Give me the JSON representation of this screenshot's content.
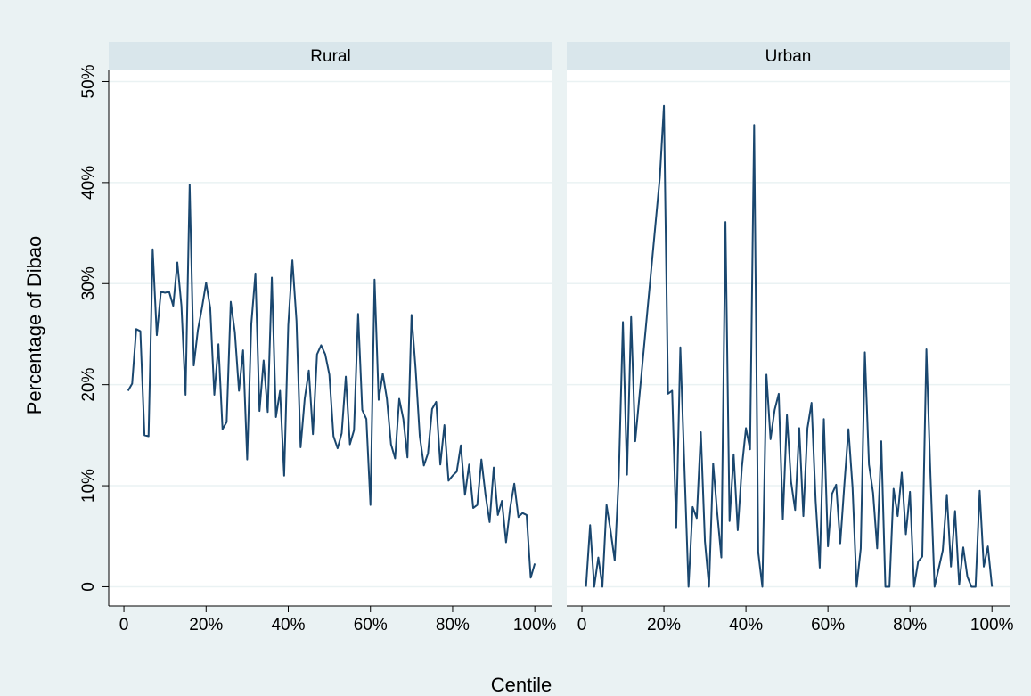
{
  "chart_data": {
    "type": "line",
    "ylabel": "Percentage of Dibao",
    "xlabel": "Centile",
    "ylim": [
      -1.9,
      51.1
    ],
    "yticks": [
      0,
      {
        "value": 10,
        "label": "10%"
      },
      {
        "value": 20,
        "label": "20%"
      },
      {
        "value": 30,
        "label": "30%"
      },
      {
        "value": 40,
        "label": "40%"
      },
      {
        "value": 50,
        "label": "50%"
      }
    ],
    "xlim": [
      -3.7,
      104.3
    ],
    "xticks": [
      0,
      {
        "value": 20,
        "label": "20%"
      },
      {
        "value": 40,
        "label": "40%"
      },
      {
        "value": 60,
        "label": "60%"
      },
      {
        "value": 80,
        "label": "80%"
      },
      {
        "value": 100,
        "label": "100%"
      }
    ],
    "grid": true,
    "color": "#1a476f",
    "panels": [
      {
        "title": "Rural",
        "x": [
          1,
          2,
          3,
          4,
          5,
          6,
          7,
          8,
          9,
          10,
          11,
          12,
          13,
          14,
          15,
          16,
          17,
          18,
          19,
          20,
          21,
          22,
          23,
          24,
          25,
          26,
          27,
          28,
          29,
          30,
          31,
          32,
          33,
          34,
          35,
          36,
          37,
          38,
          39,
          40,
          41,
          42,
          43,
          44,
          45,
          46,
          47,
          48,
          49,
          50,
          51,
          52,
          53,
          54,
          55,
          56,
          57,
          58,
          59,
          60,
          61,
          62,
          63,
          64,
          65,
          66,
          67,
          68,
          69,
          70,
          71,
          72,
          73,
          74,
          75,
          76,
          77,
          78,
          79,
          80,
          81,
          82,
          83,
          84,
          85,
          86,
          87,
          88,
          89,
          90,
          91,
          92,
          93,
          94,
          95,
          96,
          97,
          98,
          99,
          100
        ],
        "values": [
          19.4,
          20.1,
          25.5,
          25.3,
          15.0,
          14.9,
          33.4,
          24.9,
          29.2,
          29.1,
          29.2,
          27.8,
          32.1,
          27.8,
          19.0,
          39.8,
          21.9,
          25.4,
          27.6,
          30.1,
          27.6,
          19.0,
          24.0,
          15.6,
          16.3,
          28.2,
          25.2,
          19.4,
          23.4,
          12.6,
          26.0,
          31.0,
          17.4,
          22.4,
          17.3,
          30.6,
          16.8,
          19.4,
          11.0,
          25.9,
          32.3,
          26.3,
          13.8,
          18.6,
          21.4,
          15.1,
          23.0,
          23.9,
          23.0,
          21.0,
          14.9,
          13.7,
          15.2,
          20.8,
          14.1,
          15.5,
          27.0,
          17.5,
          16.6,
          8.1,
          30.4,
          18.5,
          21.1,
          18.6,
          14.1,
          12.7,
          18.6,
          16.6,
          12.8,
          26.9,
          21.5,
          14.9,
          12.0,
          13.2,
          17.6,
          18.3,
          12.1,
          16.0,
          10.5,
          11.0,
          11.4,
          14.0,
          9.1,
          12.1,
          7.8,
          8.1,
          12.6,
          9.1,
          6.4,
          11.8,
          7.1,
          8.5,
          4.4,
          7.8,
          10.2,
          6.9,
          7.3,
          7.1,
          0.9,
          2.3
        ]
      },
      {
        "title": "Urban",
        "x": [
          1,
          2,
          3,
          4,
          5,
          6,
          7,
          8,
          9,
          10,
          11,
          12,
          13,
          19,
          20,
          21,
          22,
          23,
          24,
          26,
          27,
          28,
          29,
          30,
          31,
          32,
          33,
          34,
          35,
          36,
          37,
          38,
          39,
          40,
          41,
          42,
          43,
          44,
          45,
          46,
          47,
          48,
          49,
          50,
          51,
          52,
          53,
          54,
          55,
          56,
          57,
          58,
          59,
          60,
          61,
          62,
          63,
          64,
          65,
          66,
          67,
          68,
          69,
          70,
          71,
          72,
          73,
          74,
          75,
          76,
          77,
          78,
          79,
          80,
          81,
          82,
          83,
          84,
          85,
          86,
          88,
          89,
          90,
          91,
          92,
          93,
          94,
          95,
          96,
          97,
          98,
          99,
          100
        ],
        "values": [
          0,
          6.1,
          0,
          2.9,
          0,
          8.1,
          5.5,
          2.6,
          11.0,
          26.2,
          11.1,
          26.7,
          14.4,
          40.5,
          47.6,
          19.1,
          19.4,
          5.8,
          23.7,
          0,
          7.9,
          6.8,
          15.3,
          4.5,
          0,
          12.2,
          7.3,
          2.9,
          36.1,
          6.5,
          13.1,
          5.6,
          11.8,
          15.7,
          13.6,
          45.7,
          3.4,
          0,
          21.0,
          14.6,
          17.5,
          19.1,
          6.7,
          17.0,
          10.4,
          7.6,
          15.7,
          7.0,
          15.7,
          18.2,
          8.5,
          1.9,
          16.6,
          4.0,
          9.2,
          10.1,
          4.3,
          10.1,
          15.6,
          9.8,
          0,
          3.8,
          23.2,
          12.1,
          9.3,
          3.8,
          14.4,
          0,
          0,
          9.7,
          7.0,
          11.3,
          5.2,
          9.4,
          0,
          2.5,
          3.0,
          23.5,
          11.0,
          0,
          3.6,
          9.1,
          2.0,
          7.5,
          0.2,
          3.9,
          1.0,
          0,
          0,
          9.5,
          2.0,
          4.0,
          0
        ]
      }
    ]
  }
}
